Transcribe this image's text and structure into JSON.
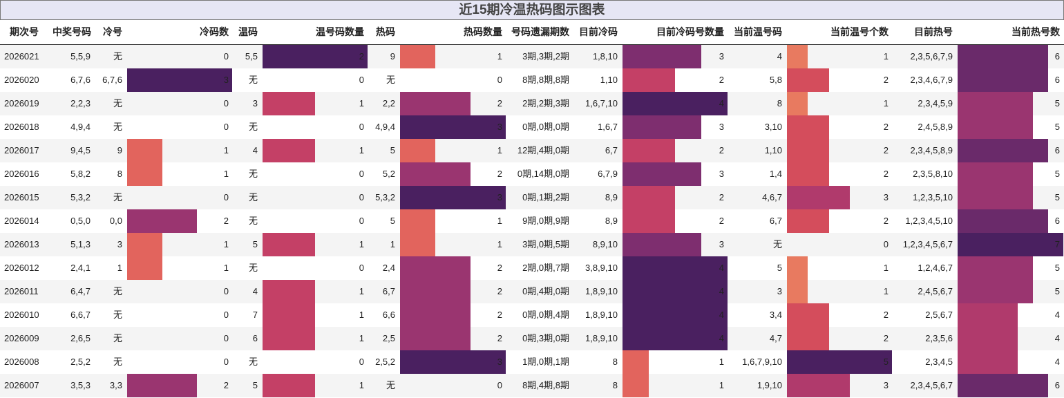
{
  "title": "近15期冷温热码图示图表",
  "table": {
    "columns": [
      "期次号",
      "中奖号码",
      "冷号",
      "冷码数",
      "温码",
      "温号码数量",
      "热码",
      "热码数量",
      "号码遗漏期数",
      "目前冷码",
      "目前冷码号数量",
      "当前温号码",
      "当前温号个数",
      "目前热号",
      "当前热号数"
    ],
    "rows": [
      [
        "2026021",
        "5,5,9",
        "无",
        0,
        "5,5",
        2,
        "9",
        1,
        "3期,3期,2期",
        "1,8,10",
        3,
        "4",
        1,
        "2,3,5,6,7,9",
        6
      ],
      [
        "2026020",
        "6,7,6",
        "6,7,6",
        3,
        "无",
        0,
        "无",
        0,
        "8期,8期,8期",
        "1,10",
        2,
        "5,8",
        2,
        "2,3,4,6,7,9",
        6
      ],
      [
        "2026019",
        "2,2,3",
        "无",
        0,
        "3",
        1,
        "2,2",
        2,
        "2期,2期,3期",
        "1,6,7,10",
        4,
        "8",
        1,
        "2,3,4,5,9",
        5
      ],
      [
        "2026018",
        "4,9,4",
        "无",
        0,
        "无",
        0,
        "4,9,4",
        3,
        "0期,0期,0期",
        "1,6,7",
        3,
        "3,10",
        2,
        "2,4,5,8,9",
        5
      ],
      [
        "2026017",
        "9,4,5",
        "9",
        1,
        "4",
        1,
        "5",
        1,
        "12期,4期,0期",
        "6,7",
        2,
        "1,10",
        2,
        "2,3,4,5,8,9",
        6
      ],
      [
        "2026016",
        "5,8,2",
        "8",
        1,
        "无",
        0,
        "5,2",
        2,
        "0期,14期,0期",
        "6,7,9",
        3,
        "1,4",
        2,
        "2,3,5,8,10",
        5
      ],
      [
        "2026015",
        "5,3,2",
        "无",
        0,
        "无",
        0,
        "5,3,2",
        3,
        "0期,1期,2期",
        "8,9",
        2,
        "4,6,7",
        3,
        "1,2,3,5,10",
        5
      ],
      [
        "2026014",
        "0,5,0",
        "0,0",
        2,
        "无",
        0,
        "5",
        1,
        "9期,0期,9期",
        "8,9",
        2,
        "6,7",
        2,
        "1,2,3,4,5,10",
        6
      ],
      [
        "2026013",
        "5,1,3",
        "3",
        1,
        "5",
        1,
        "1",
        1,
        "3期,0期,5期",
        "8,9,10",
        3,
        "无",
        0,
        "1,2,3,4,5,6,7",
        7
      ],
      [
        "2026012",
        "2,4,1",
        "1",
        1,
        "无",
        0,
        "2,4",
        2,
        "2期,0期,7期",
        "3,8,9,10",
        4,
        "5",
        1,
        "1,2,4,6,7",
        5
      ],
      [
        "2026011",
        "6,4,7",
        "无",
        0,
        "4",
        1,
        "6,7",
        2,
        "0期,4期,0期",
        "1,8,9,10",
        4,
        "3",
        1,
        "2,4,5,6,7",
        5
      ],
      [
        "2026010",
        "6,6,7",
        "无",
        0,
        "7",
        1,
        "6,6",
        2,
        "0期,0期,4期",
        "1,8,9,10",
        4,
        "3,4",
        2,
        "2,5,6,7",
        4
      ],
      [
        "2026009",
        "2,6,5",
        "无",
        0,
        "6",
        1,
        "2,5",
        2,
        "0期,3期,0期",
        "1,8,9,10",
        4,
        "4,7",
        2,
        "2,3,5,6",
        4
      ],
      [
        "2026008",
        "2,5,2",
        "无",
        0,
        "无",
        0,
        "2,5,2",
        3,
        "1期,0期,1期",
        "8",
        1,
        "1,6,7,9,10",
        5,
        "2,3,4,5",
        4
      ],
      [
        "2026007",
        "3,5,3",
        "3,3",
        2,
        "5",
        1,
        "无",
        0,
        "8期,4期,8期",
        "8",
        1,
        "1,9,10",
        3,
        "2,3,4,5,6,7",
        6
      ]
    ],
    "bar_colormap": [
      "#fbb681",
      "#f39a6e",
      "#e87a60",
      "#e2645d",
      "#d44d5c",
      "#c44066",
      "#b03a6c",
      "#9a3570",
      "#7e2e6f",
      "#6a2a6a",
      "#4a2060"
    ]
  }
}
